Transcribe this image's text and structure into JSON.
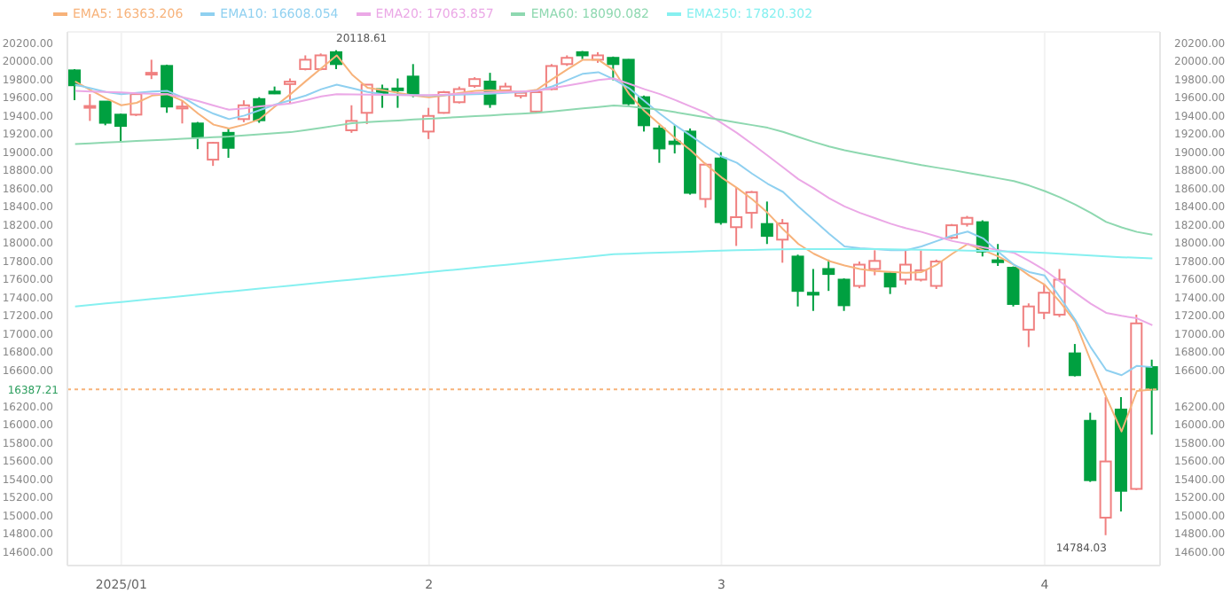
{
  "chart_data": {
    "type": "candlestick",
    "categories": [
      null,
      null,
      null,
      "2025/01",
      null,
      null,
      null,
      null,
      null,
      null,
      null,
      null,
      null,
      null,
      null,
      null,
      null,
      null,
      null,
      null,
      null,
      null,
      null,
      "2",
      null,
      null,
      null,
      null,
      null,
      null,
      null,
      null,
      null,
      null,
      null,
      null,
      null,
      null,
      null,
      null,
      null,
      null,
      "3",
      null,
      null,
      null,
      null,
      null,
      null,
      null,
      null,
      null,
      null,
      null,
      null,
      null,
      null,
      null,
      null,
      null,
      null,
      null,
      null,
      "4",
      null,
      null,
      null,
      null,
      null,
      null,
      null
    ],
    "ohlc": [
      [
        19897,
        19911,
        19568,
        19733
      ],
      [
        19491,
        19636,
        19341,
        19505
      ],
      [
        19554,
        19554,
        19293,
        19320
      ],
      [
        19410,
        19420,
        19114,
        19286
      ],
      [
        19410,
        19650,
        19395,
        19636
      ],
      [
        19857,
        20014,
        19801,
        19870
      ],
      [
        19946,
        19960,
        19430,
        19499
      ],
      [
        19478,
        19568,
        19313,
        19499
      ],
      [
        19313,
        19330,
        19031,
        19169
      ],
      [
        18915,
        19110,
        18846,
        19100
      ],
      [
        19210,
        19258,
        18935,
        19045
      ],
      [
        19361,
        19568,
        19327,
        19513
      ],
      [
        19581,
        19602,
        19320,
        19348
      ],
      [
        19664,
        19719,
        19636,
        19643
      ],
      [
        19746,
        19808,
        19533,
        19773
      ],
      [
        19911,
        20062,
        19897,
        20014
      ],
      [
        19911,
        20083,
        19897,
        20062
      ],
      [
        20097,
        20118.61,
        19911,
        19966
      ],
      [
        19238,
        19513,
        19210,
        19341
      ],
      [
        19430,
        19740,
        19306,
        19740
      ],
      [
        19691,
        19740,
        19485,
        19643
      ],
      [
        19698,
        19808,
        19485,
        19684
      ],
      [
        19829,
        19966,
        19602,
        19636
      ],
      [
        19224,
        19485,
        19142,
        19396
      ],
      [
        19430,
        19671,
        19420,
        19657
      ],
      [
        19547,
        19719,
        19533,
        19691
      ],
      [
        19726,
        19822,
        19705,
        19801
      ],
      [
        19774,
        19870,
        19485,
        19526
      ],
      [
        19677,
        19760,
        19657,
        19719
      ],
      [
        19616,
        19671,
        19588,
        19650
      ],
      [
        19444,
        19664,
        19430,
        19657
      ],
      [
        19691,
        19966,
        19677,
        19945
      ],
      [
        19966,
        20062,
        19946,
        20035
      ],
      [
        20097,
        20110,
        20021,
        20062
      ],
      [
        20014,
        20097,
        19980,
        20062
      ],
      [
        20035,
        20049,
        19788,
        19966
      ],
      [
        20014,
        20021,
        19513,
        19533
      ],
      [
        19602,
        19620,
        19224,
        19293
      ],
      [
        19258,
        19293,
        18880,
        19038
      ],
      [
        19114,
        19293,
        18983,
        19087
      ],
      [
        19224,
        19258,
        18530,
        18550
      ],
      [
        18482,
        18880,
        18386,
        18860
      ],
      [
        18928,
        18997,
        18200,
        18227
      ],
      [
        18172,
        18605,
        17966,
        18282
      ],
      [
        18330,
        18571,
        18159,
        18557
      ],
      [
        18207,
        18454,
        17987,
        18076
      ],
      [
        18035,
        18262,
        17781,
        18214
      ],
      [
        17849,
        17870,
        17300,
        17471
      ],
      [
        17451,
        17712,
        17251,
        17430
      ],
      [
        17712,
        17815,
        17471,
        17657
      ],
      [
        17595,
        17609,
        17251,
        17313
      ],
      [
        17526,
        17794,
        17500,
        17760
      ],
      [
        17712,
        17918,
        17643,
        17801
      ],
      [
        17664,
        17677,
        17437,
        17519
      ],
      [
        17595,
        17918,
        17540,
        17760
      ],
      [
        17595,
        17918,
        17575,
        17698
      ],
      [
        17526,
        17815,
        17492,
        17794
      ],
      [
        18056,
        18207,
        18042,
        18193
      ],
      [
        18207,
        18296,
        18179,
        18275
      ],
      [
        18227,
        18248,
        17850,
        17904
      ],
      [
        17808,
        17987,
        17746,
        17787
      ],
      [
        17726,
        17740,
        17300,
        17327
      ],
      [
        17045,
        17334,
        16853,
        17300
      ],
      [
        17231,
        17540,
        17160,
        17451
      ],
      [
        17210,
        17712,
        17183,
        17595
      ],
      [
        16784,
        16887,
        16530,
        16544
      ],
      [
        16042,
        16131,
        15370,
        15389
      ],
      [
        14977,
        16303,
        14784.03,
        15595
      ],
      [
        16166,
        16303,
        15045,
        15272
      ],
      [
        15293,
        17210,
        15280,
        17114
      ],
      [
        16633,
        16715,
        15890,
        16387.21
      ]
    ],
    "colors": [
      "#00a040",
      "#f08080",
      "#00a040",
      "#00a040",
      "#f08080",
      "#f08080",
      "#00a040",
      "#f08080",
      "#00a040",
      "#f08080",
      "#00a040",
      "#f08080",
      "#00a040",
      "#00a040",
      "#f08080",
      "#f08080",
      "#f08080",
      "#00a040",
      "#f08080",
      "#f08080",
      "#00a040",
      "#00a040",
      "#00a040",
      "#f08080",
      "#f08080",
      "#f08080",
      "#f08080",
      "#00a040",
      "#f08080",
      "#f08080",
      "#f08080",
      "#f08080",
      "#f08080",
      "#00a040",
      "#f08080",
      "#00a040",
      "#00a040",
      "#00a040",
      "#00a040",
      "#00a040",
      "#00a040",
      "#f08080",
      "#00a040",
      "#f08080",
      "#f08080",
      "#00a040",
      "#f08080",
      "#00a040",
      "#00a040",
      "#00a040",
      "#00a040",
      "#f08080",
      "#f08080",
      "#00a040",
      "#f08080",
      "#f08080",
      "#f08080",
      "#f08080",
      "#f08080",
      "#00a040",
      "#00a040",
      "#00a040",
      "#f08080",
      "#f08080",
      "#f08080",
      "#00a040",
      "#00a040",
      "#f08080",
      "#00a040",
      "#f08080",
      "#00a040"
    ],
    "series": [
      {
        "name": "EMA5: 16363.206",
        "type": "line",
        "color": "#f7b27a",
        "values": [
          19774,
          19680,
          19590,
          19513,
          19540,
          19620,
          19636,
          19560,
          19420,
          19300,
          19258,
          19300,
          19361,
          19500,
          19636,
          19780,
          19920,
          20062,
          19850,
          19705,
          19680,
          19650,
          19620,
          19602,
          19620,
          19650,
          19671,
          19680,
          19670,
          19660,
          19684,
          19800,
          19910,
          20014,
          20014,
          19900,
          19636,
          19450,
          19300,
          19150,
          19018,
          18860,
          18720,
          18605,
          18480,
          18330,
          18150,
          17987,
          17880,
          17800,
          17750,
          17712,
          17690,
          17680,
          17670,
          17678,
          17760,
          17880,
          17987,
          17920,
          17849,
          17760,
          17640,
          17540,
          17350,
          17128,
          16700,
          16303,
          15925,
          16372,
          16385
        ]
      },
      {
        "name": "EMA10: 16608.054",
        "type": "line",
        "color": "#8fd0f0",
        "values": [
          19740,
          19700,
          19660,
          19636,
          19650,
          19665,
          19671,
          19600,
          19500,
          19420,
          19361,
          19400,
          19460,
          19520,
          19570,
          19620,
          19690,
          19740,
          19700,
          19660,
          19636,
          19630,
          19625,
          19620,
          19625,
          19630,
          19636,
          19640,
          19650,
          19660,
          19671,
          19720,
          19790,
          19860,
          19877,
          19800,
          19700,
          19560,
          19420,
          19293,
          19180,
          19060,
          18950,
          18880,
          18760,
          18650,
          18560,
          18400,
          18250,
          18100,
          17960,
          17940,
          17930,
          17920,
          17918,
          17960,
          18020,
          18080,
          18124,
          18050,
          17900,
          17760,
          17678,
          17640,
          17400,
          17150,
          16850,
          16600,
          16544,
          16647,
          16633
        ]
      },
      {
        "name": "EMA20: 17063.857",
        "type": "line",
        "color": "#eba8e6",
        "values": [
          19671,
          19665,
          19660,
          19655,
          19645,
          19640,
          19636,
          19600,
          19560,
          19510,
          19464,
          19480,
          19500,
          19515,
          19533,
          19570,
          19610,
          19636,
          19632,
          19630,
          19628,
          19625,
          19623,
          19625,
          19630,
          19640,
          19650,
          19655,
          19660,
          19665,
          19671,
          19700,
          19730,
          19760,
          19790,
          19808,
          19750,
          19690,
          19636,
          19570,
          19500,
          19430,
          19320,
          19210,
          19087,
          18960,
          18830,
          18700,
          18600,
          18490,
          18400,
          18330,
          18270,
          18210,
          18160,
          18120,
          18070,
          18020,
          17987,
          17950,
          17920,
          17890,
          17800,
          17700,
          17575,
          17450,
          17330,
          17230,
          17197,
          17170,
          17093
        ]
      },
      {
        "name": "EMA60: 18090.082",
        "type": "line",
        "color": "#8ed8b0",
        "values": [
          19087,
          19095,
          19103,
          19111,
          19120,
          19128,
          19136,
          19145,
          19153,
          19161,
          19169,
          19181,
          19193,
          19205,
          19217,
          19240,
          19265,
          19290,
          19315,
          19327,
          19337,
          19346,
          19356,
          19365,
          19374,
          19384,
          19393,
          19402,
          19412,
          19421,
          19430,
          19446,
          19462,
          19478,
          19494,
          19510,
          19500,
          19482,
          19465,
          19437,
          19409,
          19380,
          19352,
          19323,
          19295,
          19266,
          19220,
          19165,
          19110,
          19060,
          19018,
          18985,
          18952,
          18920,
          18887,
          18855,
          18827,
          18800,
          18770,
          18740,
          18710,
          18680,
          18630,
          18570,
          18500,
          18420,
          18330,
          18230,
          18170,
          18120,
          18090
        ]
      },
      {
        "name": "EMA250: 17820.302",
        "type": "line",
        "color": "#86f0f0",
        "values": [
          17300,
          17316,
          17333,
          17349,
          17366,
          17382,
          17398,
          17415,
          17431,
          17448,
          17464,
          17480,
          17497,
          17513,
          17530,
          17546,
          17562,
          17579,
          17595,
          17612,
          17628,
          17644,
          17661,
          17677,
          17694,
          17710,
          17726,
          17743,
          17759,
          17776,
          17792,
          17808,
          17825,
          17841,
          17858,
          17874,
          17880,
          17886,
          17892,
          17897,
          17903,
          17908,
          17913,
          17918,
          17922,
          17925,
          17928,
          17930,
          17931,
          17932,
          17932,
          17931,
          17930,
          17928,
          17926,
          17924,
          17921,
          17918,
          17915,
          17911,
          17907,
          17904,
          17898,
          17890,
          17880,
          17870,
          17860,
          17850,
          17842,
          17835,
          17829
        ]
      }
    ],
    "ylim": [
      14450,
      20320
    ],
    "yticks": [
      {
        "value": 14600,
        "label": "14600.00"
      },
      {
        "value": 14800,
        "label": "14800.00"
      },
      {
        "value": 15000,
        "label": "15000.00"
      },
      {
        "value": 15200,
        "label": "15200.00"
      },
      {
        "value": 15400,
        "label": "15400.00"
      },
      {
        "value": 15600,
        "label": "15600.00"
      },
      {
        "value": 15800,
        "label": "15800.00"
      },
      {
        "value": 16000,
        "label": "16000.00"
      },
      {
        "value": 16200,
        "label": "16200.00"
      },
      {
        "value": 16600,
        "label": "16600.00"
      },
      {
        "value": 16800,
        "label": "16800.00"
      },
      {
        "value": 17000,
        "label": "17000.00"
      },
      {
        "value": 17200,
        "label": "17200.00"
      },
      {
        "value": 17400,
        "label": "17400.00"
      },
      {
        "value": 17600,
        "label": "17600.00"
      },
      {
        "value": 17800,
        "label": "17800.00"
      },
      {
        "value": 18000,
        "label": "18000.00"
      },
      {
        "value": 18200,
        "label": "18200.00"
      },
      {
        "value": 18400,
        "label": "18400.00"
      },
      {
        "value": 18600,
        "label": "18600.00"
      },
      {
        "value": 18800,
        "label": "18800.00"
      },
      {
        "value": 19000,
        "label": "19000.00"
      },
      {
        "value": 19200,
        "label": "19200.00"
      },
      {
        "value": 19400,
        "label": "19400.00"
      },
      {
        "value": 19600,
        "label": "19600.00"
      },
      {
        "value": 19800,
        "label": "19800.00"
      },
      {
        "value": 20000,
        "label": "20000.00"
      },
      {
        "value": 20200,
        "label": "20200.00"
      }
    ],
    "y2lim": [
      14450,
      20320
    ],
    "y2ticks": [
      {
        "value": 14600,
        "label": "14600.00"
      },
      {
        "value": 14800,
        "label": "14800.00"
      },
      {
        "value": 15000,
        "label": "15000.00"
      },
      {
        "value": 15200,
        "label": "15200.00"
      },
      {
        "value": 15400,
        "label": "15400.00"
      },
      {
        "value": 15600,
        "label": "15600.00"
      },
      {
        "value": 15800,
        "label": "15800.00"
      },
      {
        "value": 16000,
        "label": "16000.00"
      },
      {
        "value": 16200,
        "label": "16200.00"
      },
      {
        "value": 16600,
        "label": "16600.00"
      },
      {
        "value": 16800,
        "label": "16800.00"
      },
      {
        "value": 17000,
        "label": "17000.00"
      },
      {
        "value": 17200,
        "label": "17200.00"
      },
      {
        "value": 17400,
        "label": "17400.00"
      },
      {
        "value": 17600,
        "label": "17600.00"
      },
      {
        "value": 17800,
        "label": "17800.00"
      },
      {
        "value": 18000,
        "label": "18000.00"
      },
      {
        "value": 18200,
        "label": "18200.00"
      },
      {
        "value": 18400,
        "label": "18400.00"
      },
      {
        "value": 18600,
        "label": "18600.00"
      },
      {
        "value": 18800,
        "label": "18800.00"
      },
      {
        "value": 19000,
        "label": "19000.00"
      },
      {
        "value": 19200,
        "label": "19200.00"
      },
      {
        "value": 19400,
        "label": "19400.00"
      },
      {
        "value": 19600,
        "label": "19600.00"
      },
      {
        "value": 19800,
        "label": "19800.00"
      },
      {
        "value": 20000,
        "label": "20000.00"
      },
      {
        "value": 20200,
        "label": "20200.00"
      }
    ],
    "ref_lines": [
      {
        "axis": "y",
        "value": 16387.21,
        "label": "16387.21",
        "color": "#f7b27a",
        "line_style": "dotted"
      }
    ],
    "annotations": [
      "20118.61",
      "14784.03"
    ],
    "grid": true,
    "legend": "top left",
    "marker": "none",
    "line_style": "solid"
  }
}
